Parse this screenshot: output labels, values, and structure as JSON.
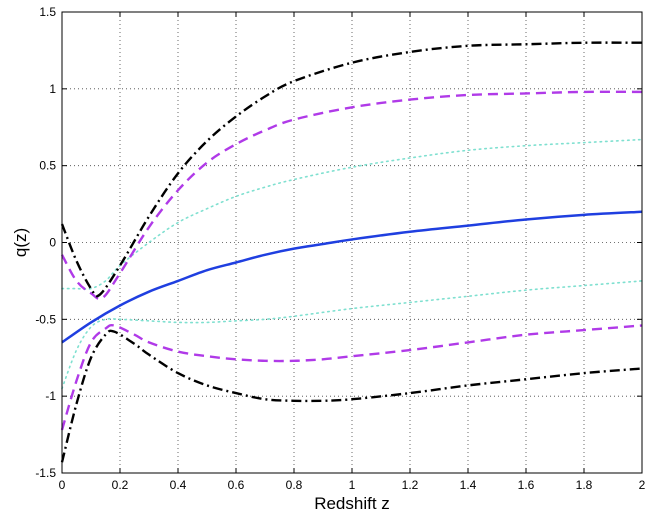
{
  "chart_data": {
    "type": "line",
    "title": "",
    "xlabel": "Redshift z",
    "ylabel": "q(z)",
    "xlim": [
      0,
      2
    ],
    "ylim": [
      -1.5,
      1.5
    ],
    "xticks": [
      0,
      0.2,
      0.4,
      0.6,
      0.8,
      1,
      1.2,
      1.4,
      1.6,
      1.8,
      2
    ],
    "xtick_labels": [
      "0",
      "0.2",
      "0.4",
      "0.6",
      "0.8",
      "1",
      "1.2",
      "1.4",
      "1.6",
      "1.8",
      "2"
    ],
    "yticks": [
      -1.5,
      -1,
      -0.5,
      0,
      0.5,
      1,
      1.5
    ],
    "ytick_labels": [
      "-1.5",
      "-1",
      "-0.5",
      "0",
      "0.5",
      "1",
      "1.5"
    ],
    "grid": true,
    "legend": "none",
    "series": [
      {
        "style": "solid",
        "color": "#1f3fe0",
        "width": 2.5,
        "x": [
          0,
          0.1,
          0.2,
          0.3,
          0.4,
          0.5,
          0.6,
          0.7,
          0.8,
          0.9,
          1.0,
          1.2,
          1.4,
          1.6,
          1.8,
          2.0
        ],
        "y": [
          -0.65,
          -0.52,
          -0.41,
          -0.32,
          -0.25,
          -0.18,
          -0.13,
          -0.08,
          -0.04,
          -0.01,
          0.02,
          0.07,
          0.11,
          0.15,
          0.18,
          0.2
        ]
      },
      {
        "style": "dotted",
        "color": "#7fe0d0",
        "width": 1.6,
        "x": [
          0,
          0.05,
          0.1,
          0.15,
          0.2,
          0.3,
          0.4,
          0.5,
          0.6,
          0.7,
          0.8,
          1.0,
          1.2,
          1.4,
          1.6,
          1.8,
          2.0
        ],
        "y": [
          -0.3,
          -0.3,
          -0.3,
          -0.25,
          -0.15,
          0.0,
          0.13,
          0.22,
          0.3,
          0.36,
          0.41,
          0.49,
          0.55,
          0.6,
          0.63,
          0.65,
          0.67
        ]
      },
      {
        "style": "dotted",
        "color": "#7fe0d0",
        "width": 1.6,
        "x": [
          0,
          0.05,
          0.1,
          0.15,
          0.2,
          0.3,
          0.4,
          0.5,
          0.6,
          0.7,
          0.8,
          1.0,
          1.2,
          1.4,
          1.6,
          1.8,
          2.0
        ],
        "y": [
          -0.95,
          -0.7,
          -0.55,
          -0.5,
          -0.5,
          -0.51,
          -0.52,
          -0.52,
          -0.51,
          -0.5,
          -0.48,
          -0.43,
          -0.39,
          -0.35,
          -0.31,
          -0.28,
          -0.25
        ]
      },
      {
        "style": "dashed",
        "color": "#b03ae8",
        "width": 2.4,
        "x": [
          0,
          0.05,
          0.1,
          0.14,
          0.2,
          0.3,
          0.4,
          0.5,
          0.6,
          0.7,
          0.8,
          1.0,
          1.2,
          1.4,
          1.6,
          1.8,
          2.0
        ],
        "y": [
          -0.08,
          -0.25,
          -0.33,
          -0.36,
          -0.2,
          0.1,
          0.34,
          0.52,
          0.64,
          0.73,
          0.8,
          0.88,
          0.93,
          0.96,
          0.97,
          0.98,
          0.98
        ]
      },
      {
        "style": "dashed",
        "color": "#b03ae8",
        "width": 2.4,
        "x": [
          0,
          0.05,
          0.1,
          0.15,
          0.18,
          0.25,
          0.3,
          0.4,
          0.5,
          0.6,
          0.7,
          0.8,
          0.9,
          1.0,
          1.2,
          1.4,
          1.6,
          1.8,
          2.0
        ],
        "y": [
          -1.22,
          -0.9,
          -0.65,
          -0.56,
          -0.54,
          -0.6,
          -0.65,
          -0.71,
          -0.74,
          -0.76,
          -0.77,
          -0.77,
          -0.76,
          -0.74,
          -0.7,
          -0.65,
          -0.6,
          -0.57,
          -0.54
        ]
      },
      {
        "style": "dashdot",
        "color": "#000000",
        "width": 2.4,
        "x": [
          0,
          0.05,
          0.1,
          0.13,
          0.2,
          0.3,
          0.4,
          0.5,
          0.6,
          0.7,
          0.8,
          1.0,
          1.2,
          1.4,
          1.6,
          1.8,
          2.0
        ],
        "y": [
          0.12,
          -0.12,
          -0.3,
          -0.34,
          -0.15,
          0.17,
          0.45,
          0.66,
          0.82,
          0.95,
          1.05,
          1.17,
          1.24,
          1.28,
          1.29,
          1.3,
          1.3
        ]
      },
      {
        "style": "dashdot",
        "color": "#000000",
        "width": 2.4,
        "x": [
          0,
          0.05,
          0.1,
          0.15,
          0.18,
          0.25,
          0.3,
          0.4,
          0.5,
          0.6,
          0.7,
          0.8,
          0.9,
          1.0,
          1.2,
          1.4,
          1.6,
          1.8,
          2.0
        ],
        "y": [
          -1.43,
          -1.05,
          -0.75,
          -0.6,
          -0.58,
          -0.66,
          -0.73,
          -0.85,
          -0.93,
          -0.98,
          -1.02,
          -1.03,
          -1.03,
          -1.02,
          -0.98,
          -0.93,
          -0.89,
          -0.85,
          -0.82
        ]
      }
    ]
  }
}
